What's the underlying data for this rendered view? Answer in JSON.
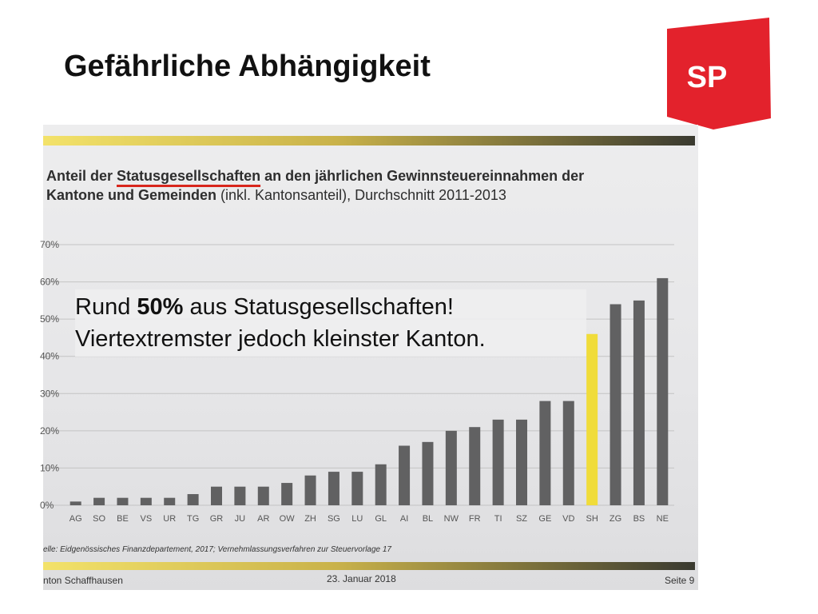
{
  "slide": {
    "title": "Gefährliche Abhängigkeit",
    "logo_text": "SP",
    "logo_color": "#e3222c"
  },
  "note": {
    "prefix": "Rund ",
    "bold": "50%",
    "suffix": " aus Statusgesellschaften!",
    "line2": "Viertextremster jedoch kleinster Kanton."
  },
  "photo": {
    "source": "elle: Eidgenössisches Finanzdepartement, 2017; Vernehmlassungsverfahren zur Steuervorlage 17",
    "footer_left": "nton Schaffhausen",
    "footer_date": "23. Januar 2018",
    "footer_page": "Seite 9"
  },
  "chart_data": {
    "type": "bar",
    "title_parts": {
      "p1": "Anteil der ",
      "p2": "Statusgesellschaften",
      "p3": " an den jährlichen Gewinnsteuereinnahmen der",
      "p4": "Kantone und Gemeinden",
      "p5": " (inkl. Kantonsanteil), Durchschnitt 2011-2013"
    },
    "categories": [
      "AG",
      "SO",
      "BE",
      "VS",
      "UR",
      "TG",
      "GR",
      "JU",
      "AR",
      "OW",
      "ZH",
      "SG",
      "LU",
      "GL",
      "AI",
      "BL",
      "NW",
      "FR",
      "TI",
      "SZ",
      "GE",
      "VD",
      "SH",
      "ZG",
      "BS",
      "NE"
    ],
    "values": [
      1,
      2,
      2,
      2,
      2,
      3,
      5,
      5,
      5,
      6,
      8,
      9,
      9,
      11,
      16,
      17,
      20,
      21,
      23,
      23,
      28,
      28,
      46,
      54,
      55,
      61
    ],
    "highlight": "SH",
    "ylim": [
      0,
      70
    ],
    "yticks": [
      "0%",
      "10%",
      "20%",
      "30%",
      "40%",
      "50%",
      "60%",
      "70%"
    ],
    "grid": true,
    "colors": {
      "bar": "#616162",
      "highlight": "#f0dc3a",
      "grid": "#c4c4c4"
    }
  }
}
